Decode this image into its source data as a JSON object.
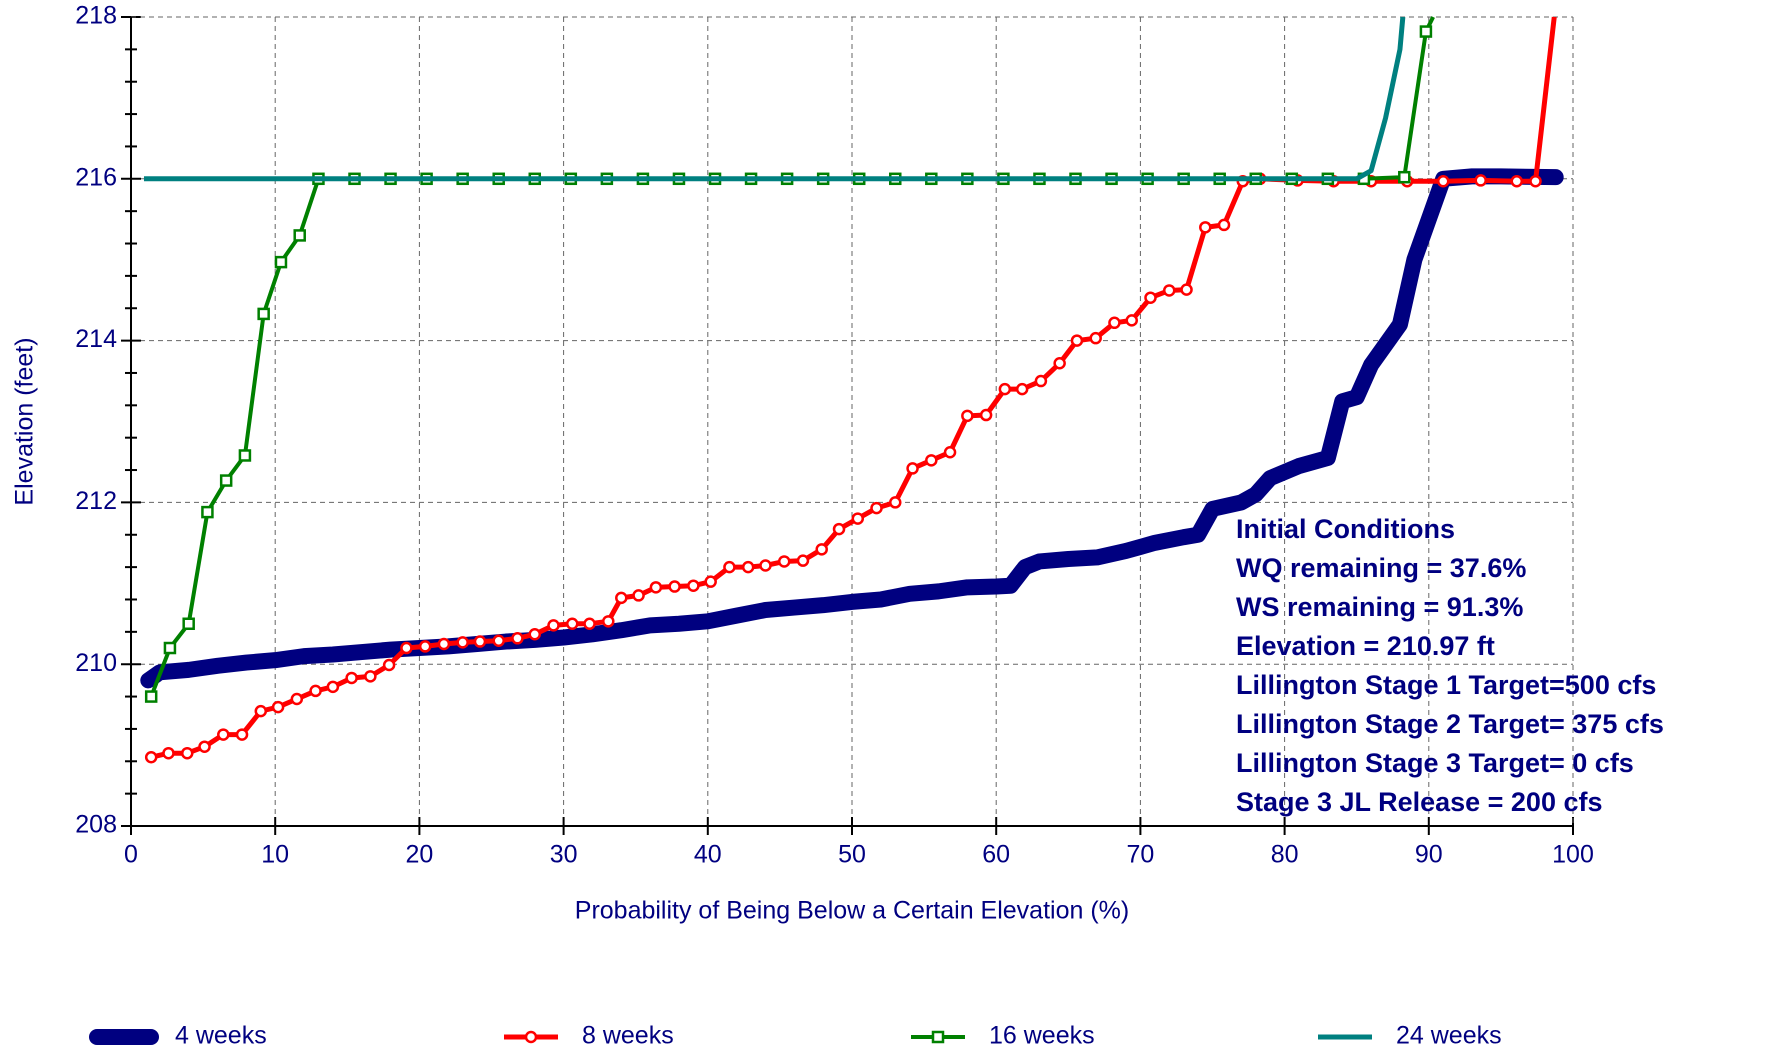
{
  "chart_data": {
    "type": "line",
    "xlabel": "Probability of Being Below a Certain Elevation (%)",
    "ylabel": "Elevation (feet)",
    "xlim": [
      0,
      100
    ],
    "xticks": [
      0,
      10,
      20,
      30,
      40,
      50,
      60,
      70,
      80,
      90,
      100
    ],
    "ylim": [
      208,
      218
    ],
    "yticks": [
      208,
      210,
      212,
      214,
      216,
      218
    ],
    "grid": true,
    "annotations": [
      "Initial Conditions",
      "WQ remaining = 37.6%",
      "WS remaining = 91.3%",
      "Elevation = 210.97 ft",
      "Lillington Stage 1 Target=500 cfs",
      "Lillington Stage 2 Target= 375 cfs",
      "Lillington Stage 3 Target= 0 cfs",
      "Stage 3 JL Release = 200 cfs"
    ],
    "series": [
      {
        "name": "4 weeks",
        "color": "#000080",
        "marker": "none",
        "x": [
          1.2,
          2,
          4,
          6,
          8,
          10,
          12,
          14,
          16,
          18,
          20,
          22,
          24,
          26,
          28,
          30,
          32,
          34,
          36,
          38,
          40,
          42,
          44,
          46,
          48,
          50,
          52,
          54,
          56,
          58,
          60,
          61,
          62,
          63,
          65,
          67,
          69,
          71,
          73,
          74,
          75,
          77,
          78,
          79,
          81,
          83,
          84,
          85,
          86,
          88,
          89,
          90,
          91,
          93,
          95,
          98.8
        ],
        "values": [
          209.8,
          209.9,
          209.93,
          209.98,
          210.02,
          210.05,
          210.1,
          210.12,
          210.15,
          210.18,
          210.2,
          210.22,
          210.25,
          210.28,
          210.3,
          210.33,
          210.37,
          210.42,
          210.48,
          210.5,
          210.53,
          210.6,
          210.67,
          210.7,
          210.73,
          210.77,
          210.8,
          210.87,
          210.9,
          210.95,
          210.96,
          210.97,
          211.2,
          211.27,
          211.3,
          211.32,
          211.4,
          211.5,
          211.57,
          211.6,
          211.92,
          212.0,
          212.1,
          212.3,
          212.45,
          212.55,
          213.25,
          213.3,
          213.7,
          214.2,
          215.0,
          215.5,
          216.0,
          216.03,
          216.03,
          216.02
        ]
      },
      {
        "name": "8 weeks",
        "color": "#ff0000",
        "marker": "circle",
        "x": [
          1.4,
          2.6,
          3.9,
          5.1,
          6.4,
          7.7,
          9,
          10.2,
          11.5,
          12.8,
          14,
          15.3,
          16.6,
          17.9,
          19.1,
          20.4,
          21.7,
          23,
          24.2,
          25.5,
          26.8,
          28,
          29.3,
          30.6,
          31.8,
          33.1,
          34,
          35.2,
          36.4,
          37.7,
          39,
          40.2,
          41.5,
          42.8,
          44,
          45.3,
          46.6,
          47.9,
          49.1,
          50.4,
          51.7,
          53,
          54.2,
          55.5,
          56.8,
          58,
          59.3,
          60.6,
          61.8,
          63.1,
          64.4,
          65.6,
          66.9,
          68.2,
          69.4,
          70.7,
          72,
          73.2,
          74.5,
          75.8,
          77.1,
          78.3,
          80.9,
          83.4,
          86,
          88.5,
          91,
          93.6,
          96.1,
          97.4,
          98.7
        ],
        "values": [
          208.85,
          208.9,
          208.9,
          208.98,
          209.13,
          209.13,
          209.42,
          209.47,
          209.57,
          209.67,
          209.72,
          209.83,
          209.85,
          209.99,
          210.2,
          210.22,
          210.25,
          210.27,
          210.28,
          210.29,
          210.32,
          210.37,
          210.48,
          210.5,
          210.5,
          210.53,
          210.82,
          210.85,
          210.95,
          210.96,
          210.97,
          211.02,
          211.2,
          211.2,
          211.22,
          211.27,
          211.28,
          211.42,
          211.67,
          211.8,
          211.93,
          212.0,
          212.42,
          212.52,
          212.62,
          213.07,
          213.08,
          213.4,
          213.4,
          213.5,
          213.72,
          214.0,
          214.03,
          214.22,
          214.25,
          214.53,
          214.62,
          214.63,
          215.4,
          215.43,
          215.97,
          216.0,
          215.98,
          215.97,
          215.97,
          215.97,
          215.97,
          215.98,
          215.97,
          215.97,
          218
        ]
      },
      {
        "name": "16 weeks",
        "color": "#008000",
        "marker": "square",
        "x": [
          1.4,
          2.7,
          4,
          5.3,
          6.6,
          7.9,
          9.2,
          10.4,
          11.7,
          13,
          15.5,
          18,
          20.5,
          23,
          25.5,
          28,
          30.5,
          33,
          35.5,
          38,
          40.5,
          43,
          45.5,
          48,
          50.5,
          53,
          55.5,
          58,
          60.5,
          63,
          65.5,
          68,
          70.5,
          73,
          75.5,
          78,
          80.5,
          83,
          85.5,
          88.3,
          89.8,
          90.3
        ],
        "values": [
          209.6,
          210.2,
          210.5,
          211.88,
          212.27,
          212.58,
          214.33,
          214.97,
          215.3,
          216.0,
          216.0,
          216.0,
          216.0,
          216.0,
          216.0,
          216.0,
          216.0,
          216.0,
          216.0,
          216.0,
          216.0,
          216.0,
          216.0,
          216.0,
          216.0,
          216.0,
          216.0,
          216.0,
          216.0,
          216.0,
          216.0,
          216.0,
          216.0,
          216.0,
          216.0,
          216.0,
          216.0,
          216.0,
          216.0,
          216.02,
          217.82,
          218
        ]
      },
      {
        "name": "24 weeks",
        "color": "#008080",
        "marker": "none",
        "x": [
          0.9,
          85,
          86,
          87,
          88,
          88.2
        ],
        "values": [
          216.0,
          216.0,
          216.1,
          216.75,
          217.6,
          218
        ]
      }
    ]
  }
}
